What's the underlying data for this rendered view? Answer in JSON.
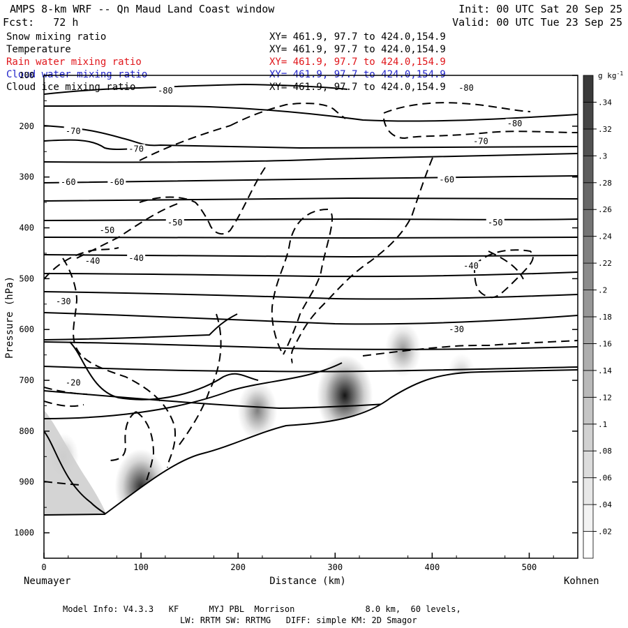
{
  "header": {
    "title": "AMPS 8-km WRF -- Qn Maud Land Coast window",
    "forecast": "Fcst:   72 h",
    "init": "Init: 00 UTC Sat 20 Sep 25",
    "valid": "Valid: 00 UTC Tue 23 Sep 25"
  },
  "fields": [
    {
      "name": "Snow mixing ratio",
      "xy": "XY= 461.9, 97.7 to 424.0,154.9",
      "color": "#000000"
    },
    {
      "name": "Temperature",
      "xy": "XY= 461.9, 97.7 to 424.0,154.9",
      "color": "#000000"
    },
    {
      "name": "Rain water mixing ratio",
      "xy": "XY= 461.9, 97.7 to 424.0,154.9",
      "color": "#e0161b"
    },
    {
      "name": "Cloud water mixing ratio",
      "xy": "XY= 461.9, 97.7 to 424.0,154.9",
      "color": "#1f22c8"
    },
    {
      "name": "Cloud ice mixing ratio",
      "xy": "XY= 461.9, 97.7 to 424.0,154.9",
      "color": "#000000"
    }
  ],
  "footer": {
    "line1": "Model Info: V4.3.3   KF      MYJ PBL  Morrison              8.0 km,  60 levels,",
    "line2": "LW: RRTM SW: RRTMG   DIFF: simple KM: 2D Smagor"
  },
  "chart_data": {
    "type": "heatmap",
    "title": "Snow mixing ratio",
    "xlabel": "Distance (km)",
    "ylabel": "Pressure (hPa)",
    "xlim": [
      0,
      550
    ],
    "ylim": [
      1050,
      100
    ],
    "x_ticks": [
      0,
      100,
      200,
      300,
      400,
      500
    ],
    "y_ticks": [
      100,
      200,
      300,
      400,
      500,
      600,
      700,
      800,
      900,
      1000
    ],
    "left_label": "Neumayer",
    "right_label": "Kohnen",
    "colorbar": {
      "unit": "g kg",
      "unit_sup": "-1",
      "levels": [
        0.02,
        0.04,
        0.06,
        0.08,
        0.1,
        0.12,
        0.14,
        0.16,
        0.18,
        0.2,
        0.22,
        0.24,
        0.26,
        0.28,
        0.3,
        0.32,
        0.34
      ],
      "tick_labels": [
        ".02",
        ".04",
        ".06",
        ".08",
        ".1",
        ".12",
        ".14",
        ".16",
        ".18",
        ".2",
        ".22",
        ".24",
        ".26",
        ".28",
        ".3",
        ".32",
        ".34"
      ],
      "color_low": "#ffffff",
      "color_high": "#3a3a3a"
    },
    "snow_maxima": [
      {
        "x": 100,
        "p": 910,
        "value": 0.3
      },
      {
        "x": 220,
        "p": 760,
        "value": 0.16
      },
      {
        "x": 310,
        "p": 730,
        "value": 0.34
      },
      {
        "x": 370,
        "p": 640,
        "value": 0.12
      },
      {
        "x": 20,
        "p": 850,
        "value": 0.06
      },
      {
        "x": 430,
        "p": 690,
        "value": 0.04
      }
    ],
    "temperature_isotherms": [
      {
        "label": "-80",
        "x": 125,
        "p": 130
      },
      {
        "label": "-80",
        "x": 435,
        "p": 125
      },
      {
        "label": "-80",
        "x": 485,
        "p": 195
      },
      {
        "label": "-70",
        "x": 30,
        "p": 210
      },
      {
        "label": "-70",
        "x": 95,
        "p": 245
      },
      {
        "label": "-70",
        "x": 450,
        "p": 230
      },
      {
        "label": "-60",
        "x": 25,
        "p": 310
      },
      {
        "label": "-60",
        "x": 75,
        "p": 310
      },
      {
        "label": "-60",
        "x": 415,
        "p": 305
      },
      {
        "label": "-50",
        "x": 65,
        "p": 405
      },
      {
        "label": "-50",
        "x": 135,
        "p": 390
      },
      {
        "label": "-50",
        "x": 465,
        "p": 390
      },
      {
        "label": "-40",
        "x": 50,
        "p": 465
      },
      {
        "label": "-40",
        "x": 95,
        "p": 460
      },
      {
        "label": "-40",
        "x": 440,
        "p": 475
      },
      {
        "label": "-30",
        "x": 20,
        "p": 545
      },
      {
        "label": "-30",
        "x": 425,
        "p": 600
      },
      {
        "label": "-20",
        "x": 30,
        "p": 705
      }
    ],
    "terrain_top_hPa": [
      {
        "x": 0,
        "p": 965
      },
      {
        "x": 60,
        "p": 965
      },
      {
        "x": 150,
        "p": 900
      },
      {
        "x": 200,
        "p": 840
      },
      {
        "x": 260,
        "p": 820
      },
      {
        "x": 320,
        "p": 795
      },
      {
        "x": 360,
        "p": 745
      },
      {
        "x": 400,
        "p": 690
      },
      {
        "x": 550,
        "p": 680
      }
    ]
  }
}
